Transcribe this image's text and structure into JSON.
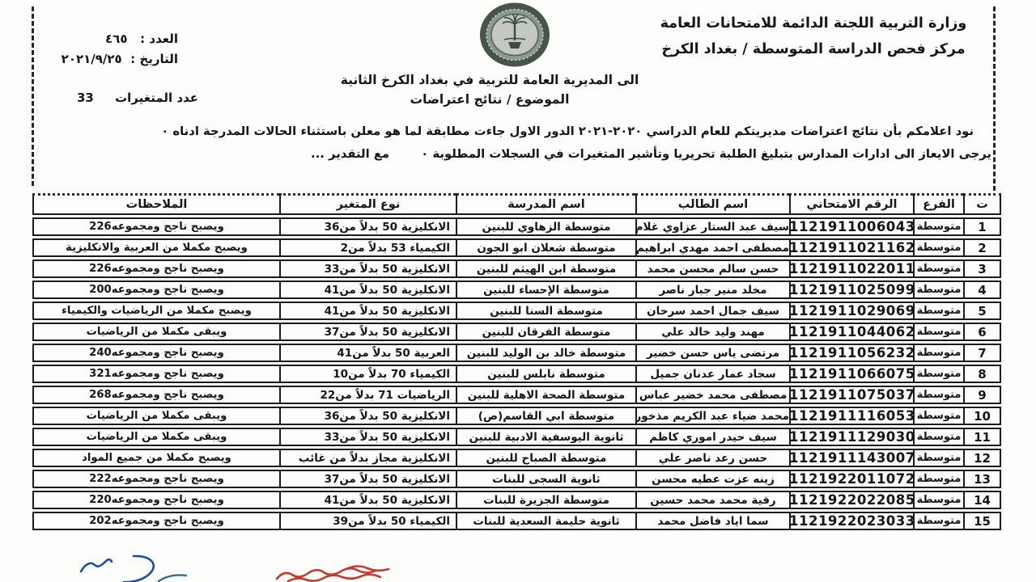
{
  "header": {
    "ministry_line1": "وزارة التربية اللجنة الدائمة للامتحانات العامة",
    "ministry_line2": "مركز فحص الدراسة المتوسطة / بغداد الكرخ",
    "number_label": "العدد :",
    "number_value": "٤٦٥",
    "date_label": "التاريخ :",
    "date_value": "٢٠٢١/٩/٢٥",
    "variables_label": "عدد المتغيرات",
    "variables_count": "33"
  },
  "letter": {
    "addressee": "الى المديرية العامة للتربية في بغداد الكرخ الثانية",
    "subject": "الموضوع / نتائج اعتراضات",
    "body_line1": "نود اعلامكم بأن نتائج اعتراضات مديريتكم للعام الدراسي ٢٠٢٠-٢٠٢١ الدور الاول جاءت مطابقة لما هو معلن باستثناء الحالات المدرجة ادناه ٠",
    "body_line2": "يرجى الايعاز الى ادارات المدارس بتبليغ الطلبة تحريريا وتأشير المتغيرات في السجلات المطلوبة ٠",
    "closing": "مع التقدير ..."
  },
  "icons": {
    "ministry-seal-icon": "circular emblem with palm tree",
    "signature-scribble-blue": "handwritten pen signature",
    "pen-stroke-teal": "handwritten pen stroke",
    "pen-scribble-red": "handwritten red scribble"
  },
  "colors": {
    "ink": "#161616",
    "border": "#1b1b1b",
    "signature_blue": "#1d4e9e",
    "pen_teal": "#2e6f8e",
    "scribble_red": "#c23b2e",
    "seal_ring": "#4c5a50",
    "seal_inner": "#c3c9c0"
  },
  "table": {
    "headers": [
      "ت",
      "الفرع",
      "الرقم الامتحاني",
      "اسم الطالب",
      "اسم المدرسة",
      "نوع المتغير",
      "الملاحظات"
    ],
    "rows": [
      {
        "no": "1",
        "branch": "متوسطة",
        "exam_number": "1121911006043",
        "student_name": "سيف عبد الستار عزاوي غلام",
        "school_name": "متوسطة الزهاوي للبنين",
        "change_type": "الانكليزية 50 بدلاً من36",
        "note": "ويصبح ناجح ومجموعه226"
      },
      {
        "no": "2",
        "branch": "متوسطة",
        "exam_number": "1121911021162",
        "student_name": "مصطفى احمد مهدي ابراهيم",
        "school_name": "متوسطة شعلان ابو الجون",
        "change_type": "الكيمياء 53 بدلاً من2",
        "note": "ويصبح مكملا من العربية والانكليزية"
      },
      {
        "no": "3",
        "branch": "متوسطة",
        "exam_number": "1121911022011",
        "student_name": "حسن سالم محسن محمد",
        "school_name": "متوسطة ابن الهيثم للبنين",
        "change_type": "الانكليزية 50 بدلاً من33",
        "note": "ويصبح ناجح ومجموعه226"
      },
      {
        "no": "4",
        "branch": "متوسطة",
        "exam_number": "1121911025099",
        "student_name": "مخلد منير جبار ناصر",
        "school_name": "متوسطة الإحساء للبنين",
        "change_type": "الانكليزية 50 بدلاً من41",
        "note": "ويصبح ناجح ومجموعه200"
      },
      {
        "no": "5",
        "branch": "متوسطة",
        "exam_number": "1121911029069",
        "student_name": "سيف جمال احمد سرحان",
        "school_name": "متوسطة السنا للبنين",
        "change_type": "الانكليزية 50 بدلاً من41",
        "note": "ويصبح مكملا من الرياضيات والكيمياء"
      },
      {
        "no": "6",
        "branch": "متوسطة",
        "exam_number": "1121911044062",
        "student_name": "مهند وليد خالد علي",
        "school_name": "متوسطة الفرقان للبنين",
        "change_type": "الانكليزية 50 بدلاً من37",
        "note": "ويبقى مكملا من الرياضيات"
      },
      {
        "no": "7",
        "branch": "متوسطة",
        "exam_number": "1121911056232",
        "student_name": "مرتضى ياس حسن خضير",
        "school_name": "متوسطة خالد بن الوليد للبنين",
        "change_type": "العربية 50 بدلاً من41",
        "note": "ويصبح ناجح ومجموعه240"
      },
      {
        "no": "8",
        "branch": "متوسطة",
        "exam_number": "1121911066075",
        "student_name": "سجاد عمار عدنان جميل",
        "school_name": "متوسطة نابلس للبنين",
        "change_type": "الكيمياء 70 بدلاً من10",
        "note": "ويصبح ناجح ومجموعه321"
      },
      {
        "no": "9",
        "branch": "متوسطة",
        "exam_number": "1121911075037",
        "student_name": "مصطفى محمد خضير عباس",
        "school_name": "متوسطة الصحة الاهلية للبنين",
        "change_type": "الرياضيات 71 بدلاً من22",
        "note": "ويصبح ناجح ومجموعه268"
      },
      {
        "no": "10",
        "branch": "متوسطة",
        "exam_number": "1121911116053",
        "student_name": "محمد ضياء عبد الكريم مذخور",
        "school_name": "متوسطة ابي القاسم(ص)",
        "change_type": "الانكليزية 50 بدلاً من36",
        "note": "ويبقى مكملا من الرياضيات"
      },
      {
        "no": "11",
        "branch": "متوسطة",
        "exam_number": "1121911129030",
        "student_name": "سيف حيدر اموري كاظم",
        "school_name": "ثانوية اليوسفية الادبية للبنين",
        "change_type": "الانكليزية 50 بدلاً من33",
        "note": "ويبقى مكملا من الرياضيات"
      },
      {
        "no": "12",
        "branch": "متوسطة",
        "exam_number": "1121911143007",
        "student_name": "حسن رعد ناصر علي",
        "school_name": "متوسطة الصباح للبنين",
        "change_type": "الانكليزية مجاز بدلاً من غائب",
        "note": "ويصبح مكملا من جميع المواد"
      },
      {
        "no": "13",
        "branch": "متوسطة",
        "exam_number": "1121922011072",
        "student_name": "زينه عزت عطيه محسن",
        "school_name": "ثانوية السجى للبنات",
        "change_type": "الانكليزية 50 بدلاً من37",
        "note": "ويصبح ناجح ومجموعه222"
      },
      {
        "no": "14",
        "branch": "متوسطة",
        "exam_number": "1121922022085",
        "student_name": "رقية محمد محمد حسين",
        "school_name": "متوسطة الجزيرة للبنات",
        "change_type": "الانكليزية 50 بدلاً من41",
        "note": "ويصبح ناجح ومجموعه220"
      },
      {
        "no": "15",
        "branch": "متوسطة",
        "exam_number": "1121922023033",
        "student_name": "سما اياد فاضل محمد",
        "school_name": "ثانوية حليمة السعدية للبنات",
        "change_type": "الكيمياء 50 بدلاً من39",
        "note": "ويصبح ناجح ومجموعه202"
      }
    ]
  }
}
